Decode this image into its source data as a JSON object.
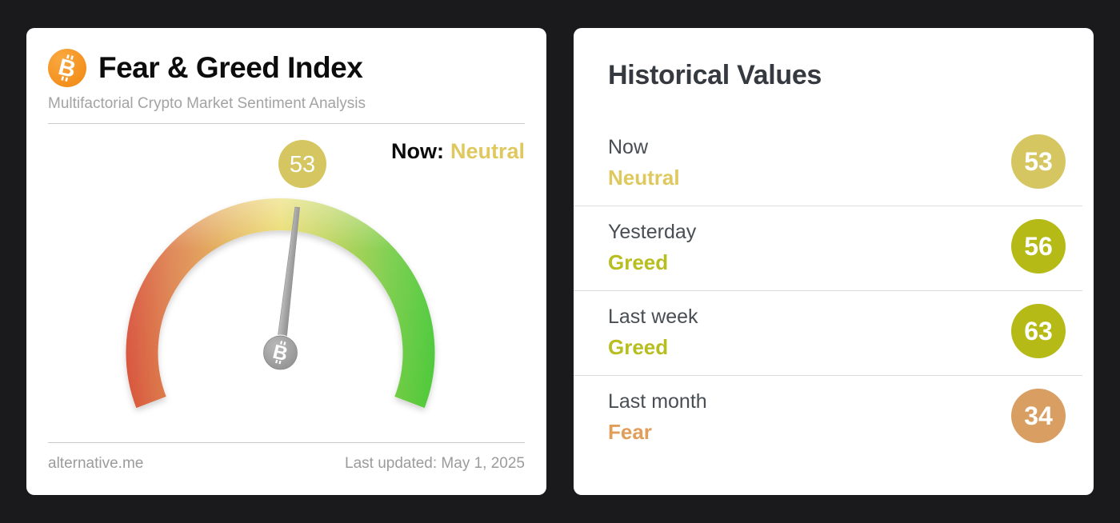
{
  "colors": {
    "background": "#1a1a1c",
    "card": "#ffffff",
    "bitcoin_orange": "#f7941c",
    "neutral_text": "#dfc95e",
    "neutral_badge": "#d5c662",
    "greed_text": "#b8bd20",
    "greed_badge": "#b5ba16",
    "fear_text": "#e09e58",
    "fear_badge": "#d99e62"
  },
  "left_card": {
    "title": "Fear & Greed Index",
    "subtitle": "Multifactorial Crypto Market Sentiment Analysis",
    "now_label": "Now:",
    "now_sentiment": "Neutral",
    "now_sentiment_color": "#dfc95e",
    "gauge": {
      "value": 53,
      "value_label": "53",
      "min": 0,
      "max": 100,
      "sweep_deg": 222,
      "badge_color": "#d5c662",
      "stops": [
        {
          "color": "#d8533c"
        },
        {
          "color": "#dd7f4d"
        },
        {
          "color": "#e2ac52"
        },
        {
          "color": "#e8d75a"
        },
        {
          "color": "#accf4e"
        },
        {
          "color": "#74cc45"
        },
        {
          "color": "#4cc93a"
        }
      ]
    },
    "footer": {
      "source": "alternative.me",
      "last_updated": "Last updated: May 1, 2025"
    }
  },
  "right_card": {
    "title": "Historical Values",
    "rows": [
      {
        "label": "Now",
        "sentiment": "Neutral",
        "value": "53",
        "text_color": "#dfc95e",
        "badge_color": "#d5c662"
      },
      {
        "label": "Yesterday",
        "sentiment": "Greed",
        "value": "56",
        "text_color": "#b8bd20",
        "badge_color": "#b5ba16"
      },
      {
        "label": "Last week",
        "sentiment": "Greed",
        "value": "63",
        "text_color": "#b8bd20",
        "badge_color": "#b5ba16"
      },
      {
        "label": "Last month",
        "sentiment": "Fear",
        "value": "34",
        "text_color": "#e09e58",
        "badge_color": "#d99e62"
      }
    ]
  },
  "chart_data": {
    "type": "gauge",
    "title": "Fear & Greed Index",
    "subtitle": "Multifactorial Crypto Market Sentiment Analysis",
    "value": 53,
    "classification": "Neutral",
    "min": 0,
    "max": 100,
    "scale": "red (Extreme Fear) through yellow (Neutral) to green (Extreme Greed)",
    "last_updated": "May 1, 2025",
    "source": "alternative.me",
    "historical": [
      {
        "period": "Now",
        "classification": "Neutral",
        "value": 53
      },
      {
        "period": "Yesterday",
        "classification": "Greed",
        "value": 56
      },
      {
        "period": "Last week",
        "classification": "Greed",
        "value": 63
      },
      {
        "period": "Last month",
        "classification": "Fear",
        "value": 34
      }
    ]
  }
}
